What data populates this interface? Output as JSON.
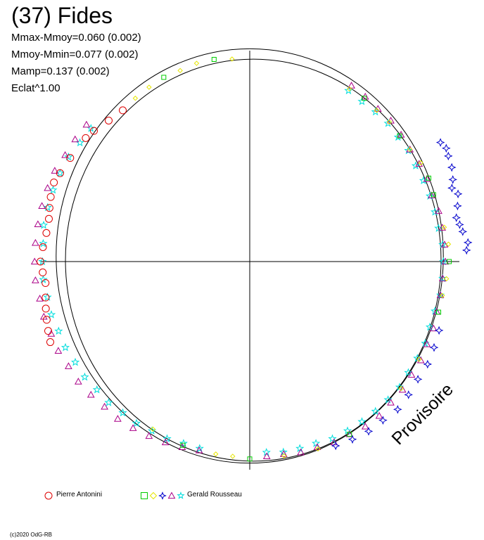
{
  "title": "(37) Fides",
  "stats": [
    "Mmax-Mmoy=0.060 (0.002)",
    "Mmoy-Mmin=0.077 (0.002)",
    "Mamp=0.137 (0.002)",
    "Eclat^1.00"
  ],
  "watermark": "Provisoire",
  "copyright": "(c)2020 OdG-RB",
  "chart_data": {
    "type": "scatter",
    "title": "(37) Fides",
    "polar": true,
    "series": [
      {
        "name": "Pierre Antonini",
        "marker": "circle",
        "color": "#dd0000",
        "points": [
          [
            130,
            1.01
          ],
          [
            135,
            1.02
          ],
          [
            140,
            1.04
          ],
          [
            143,
            1.05
          ],
          [
            150,
            1.06
          ],
          [
            155,
            1.07
          ],
          [
            158,
            1.08
          ],
          [
            162,
            1.07
          ],
          [
            165,
            1.06
          ],
          [
            168,
            1.05
          ],
          [
            172,
            1.05
          ],
          [
            176,
            1.06
          ],
          [
            180,
            1.07
          ],
          [
            183,
            1.06
          ],
          [
            186,
            1.05
          ],
          [
            190,
            1.06
          ],
          [
            193,
            1.07
          ],
          [
            196,
            1.08
          ],
          [
            199,
            1.09
          ],
          [
            202,
            1.1
          ]
        ]
      },
      {
        "name": "Gerald Rousseau",
        "markers": [
          "square",
          "diamond",
          "star4",
          "triangle",
          "star"
        ],
        "colors": [
          "#00cc00",
          "#e6e600",
          "#0000cc",
          "#aa0088",
          "#00dddd"
        ],
        "points": [
          [
            95,
            1.04
          ],
          [
            100,
            1.05
          ],
          [
            105,
            1.05
          ],
          [
            110,
            1.04
          ],
          [
            115,
            1.04
          ],
          [
            120,
            1.03
          ],
          [
            125,
            1.02
          ],
          [
            20,
            1.0
          ],
          [
            10,
            1.01
          ],
          [
            5,
            1.02
          ],
          [
            0,
            1.02
          ],
          [
            355,
            1.01
          ],
          [
            350,
            1.0
          ],
          [
            345,
            1.0
          ],
          [
            330,
            1.0
          ],
          [
            320,
            1.01
          ],
          [
            300,
            1.02
          ],
          [
            290,
            1.02
          ],
          [
            280,
            1.01
          ],
          [
            270,
            1.01
          ],
          [
            265,
            1.0
          ],
          [
            260,
            1.0
          ],
          [
            250,
            1.0
          ],
          [
            240,
            0.99
          ],
          [
            60,
            1.02
          ],
          [
            55,
            1.02
          ],
          [
            50,
            1.01
          ],
          [
            45,
            1.01
          ],
          [
            40,
            1.0
          ],
          [
            35,
            1.0
          ],
          [
            30,
            1.01
          ],
          [
            25,
            1.01
          ]
        ]
      }
    ],
    "extra_points": {
      "blue_stars": [
        [
          340,
          1.03
        ],
        [
          335,
          1.04
        ],
        [
          330,
          1.05
        ],
        [
          325,
          1.05
        ],
        [
          320,
          1.06
        ],
        [
          315,
          1.07
        ],
        [
          310,
          1.06
        ],
        [
          305,
          1.06
        ],
        [
          300,
          1.05
        ],
        [
          295,
          1.04
        ],
        [
          32,
          1.15
        ],
        [
          30,
          1.16
        ],
        [
          28,
          1.15
        ],
        [
          25,
          1.14
        ],
        [
          22,
          1.12
        ],
        [
          20,
          1.1
        ],
        [
          18,
          1.12
        ],
        [
          15,
          1.1
        ],
        [
          12,
          1.08
        ],
        [
          10,
          1.09
        ],
        [
          8,
          1.1
        ],
        [
          5,
          1.12
        ],
        [
          3,
          1.11
        ]
      ],
      "magenta_triangles": [
        [
          140,
          1.09
        ],
        [
          145,
          1.09
        ],
        [
          150,
          1.09
        ],
        [
          155,
          1.1
        ],
        [
          160,
          1.1
        ],
        [
          165,
          1.1
        ],
        [
          170,
          1.1
        ],
        [
          175,
          1.1
        ],
        [
          180,
          1.1
        ],
        [
          185,
          1.1
        ],
        [
          190,
          1.09
        ],
        [
          195,
          1.09
        ],
        [
          200,
          1.08
        ],
        [
          205,
          1.08
        ],
        [
          210,
          1.07
        ],
        [
          215,
          1.07
        ],
        [
          220,
          1.06
        ],
        [
          225,
          1.05
        ],
        [
          230,
          1.05
        ],
        [
          235,
          1.04
        ],
        [
          240,
          1.03
        ],
        [
          245,
          1.02
        ],
        [
          250,
          1.01
        ],
        [
          255,
          1.0
        ],
        [
          60,
          1.04
        ],
        [
          55,
          1.03
        ],
        [
          50,
          1.02
        ],
        [
          45,
          1.02
        ],
        [
          40,
          1.01
        ],
        [
          35,
          1.0
        ],
        [
          30,
          1.0
        ],
        [
          25,
          1.0
        ],
        [
          20,
          0.99
        ],
        [
          15,
          1.0
        ],
        [
          10,
          1.0
        ],
        [
          5,
          1.0
        ],
        [
          0,
          1.0
        ],
        [
          355,
          0.99
        ],
        [
          350,
          0.99
        ],
        [
          345,
          0.99
        ],
        [
          340,
          1.0
        ],
        [
          335,
          1.0
        ],
        [
          330,
          1.01
        ],
        [
          325,
          1.01
        ],
        [
          320,
          1.02
        ],
        [
          315,
          1.02
        ],
        [
          310,
          1.03
        ],
        [
          305,
          1.03
        ],
        [
          300,
          1.02
        ],
        [
          295,
          1.02
        ],
        [
          290,
          1.01
        ],
        [
          285,
          1.01
        ],
        [
          280,
          1.0
        ],
        [
          275,
          1.0
        ]
      ],
      "cyan_stars": [
        [
          140,
          1.06
        ],
        [
          145,
          1.06
        ],
        [
          150,
          1.07
        ],
        [
          155,
          1.07
        ],
        [
          160,
          1.07
        ],
        [
          165,
          1.07
        ],
        [
          170,
          1.07
        ],
        [
          175,
          1.06
        ],
        [
          180,
          1.06
        ],
        [
          185,
          1.06
        ],
        [
          190,
          1.05
        ],
        [
          195,
          1.05
        ],
        [
          200,
          1.04
        ],
        [
          205,
          1.04
        ],
        [
          210,
          1.03
        ],
        [
          215,
          1.03
        ],
        [
          220,
          1.02
        ],
        [
          225,
          1.02
        ],
        [
          230,
          1.01
        ],
        [
          235,
          1.01
        ],
        [
          240,
          1.0
        ],
        [
          245,
          1.0
        ],
        [
          250,
          0.99
        ],
        [
          255,
          0.99
        ],
        [
          60,
          1.01
        ],
        [
          55,
          1.0
        ],
        [
          50,
          1.0
        ],
        [
          45,
          1.0
        ],
        [
          40,
          0.99
        ],
        [
          35,
          0.99
        ],
        [
          30,
          0.98
        ],
        [
          25,
          0.98
        ],
        [
          20,
          0.98
        ],
        [
          15,
          0.98
        ],
        [
          10,
          0.98
        ],
        [
          5,
          0.99
        ],
        [
          0,
          0.99
        ],
        [
          355,
          0.99
        ],
        [
          350,
          0.99
        ],
        [
          345,
          0.98
        ],
        [
          340,
          0.98
        ],
        [
          335,
          0.99
        ],
        [
          330,
          0.99
        ],
        [
          325,
          0.99
        ],
        [
          320,
          1.0
        ],
        [
          315,
          1.0
        ],
        [
          310,
          1.0
        ],
        [
          305,
          1.0
        ],
        [
          300,
          1.0
        ],
        [
          295,
          1.0
        ],
        [
          290,
          0.99
        ],
        [
          285,
          0.99
        ],
        [
          280,
          0.99
        ],
        [
          275,
          0.98
        ]
      ]
    },
    "reference_circles": [
      1.0,
      0.97
    ],
    "grid": false,
    "legend_position": "bottom"
  }
}
